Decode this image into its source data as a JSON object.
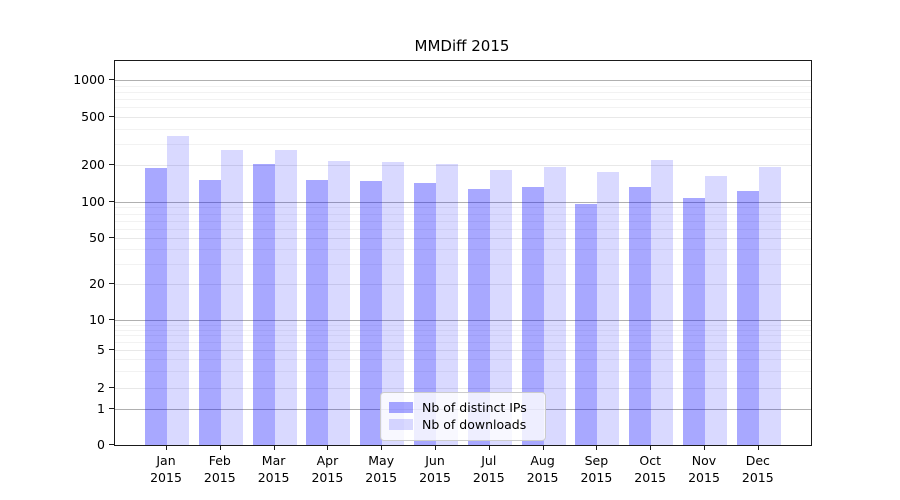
{
  "figure": {
    "title": "MMDiff 2015"
  },
  "chart_data": {
    "type": "bar",
    "title": "MMDiff 2015",
    "categories": [
      "Jan",
      "Feb",
      "Mar",
      "Apr",
      "May",
      "Jun",
      "Jul",
      "Aug",
      "Sep",
      "Oct",
      "Nov",
      "Dec"
    ],
    "category_year": "2015",
    "series": [
      {
        "name": "Nb of distinct IPs",
        "color": "rgba(0,0,255,0.34)",
        "values": [
          190,
          152,
          203,
          150,
          149,
          144,
          127,
          132,
          96,
          132,
          108,
          123
        ]
      },
      {
        "name": "Nb of downloads",
        "color": "rgba(0,0,255,0.15)",
        "values": [
          350,
          268,
          266,
          216,
          212,
          205,
          182,
          194,
          177,
          220,
          163,
          191
        ]
      }
    ],
    "yscale": "symlog",
    "yticks": [
      0,
      1,
      2,
      5,
      10,
      20,
      50,
      100,
      200,
      500,
      1000
    ],
    "ylim": [
      0,
      1400
    ],
    "xlabel": "",
    "ylabel": "",
    "grid": true,
    "legend_position": "lower-center",
    "colors": {
      "decade_gridline": "#b0b0b0",
      "major_gridline": "#e8e8e8",
      "minor_gridline": "#f2f2f2",
      "axis": "#1a1a1a"
    }
  }
}
